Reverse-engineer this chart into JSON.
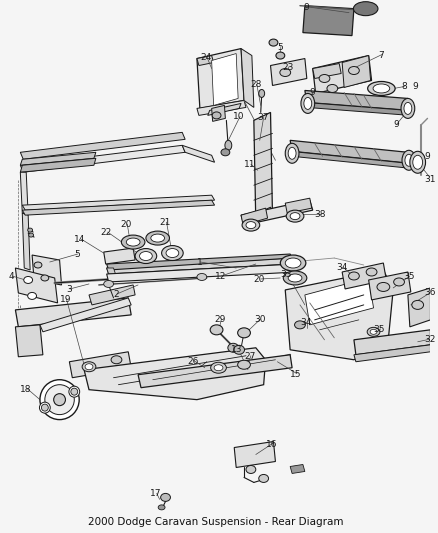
{
  "title": "2000 Dodge Caravan Suspension - Rear Diagram",
  "bg": "#f5f5f5",
  "lc": "#1a1a1a",
  "label_color": "#1a1a1a",
  "fig_width": 4.38,
  "fig_height": 5.33,
  "dpi": 100
}
